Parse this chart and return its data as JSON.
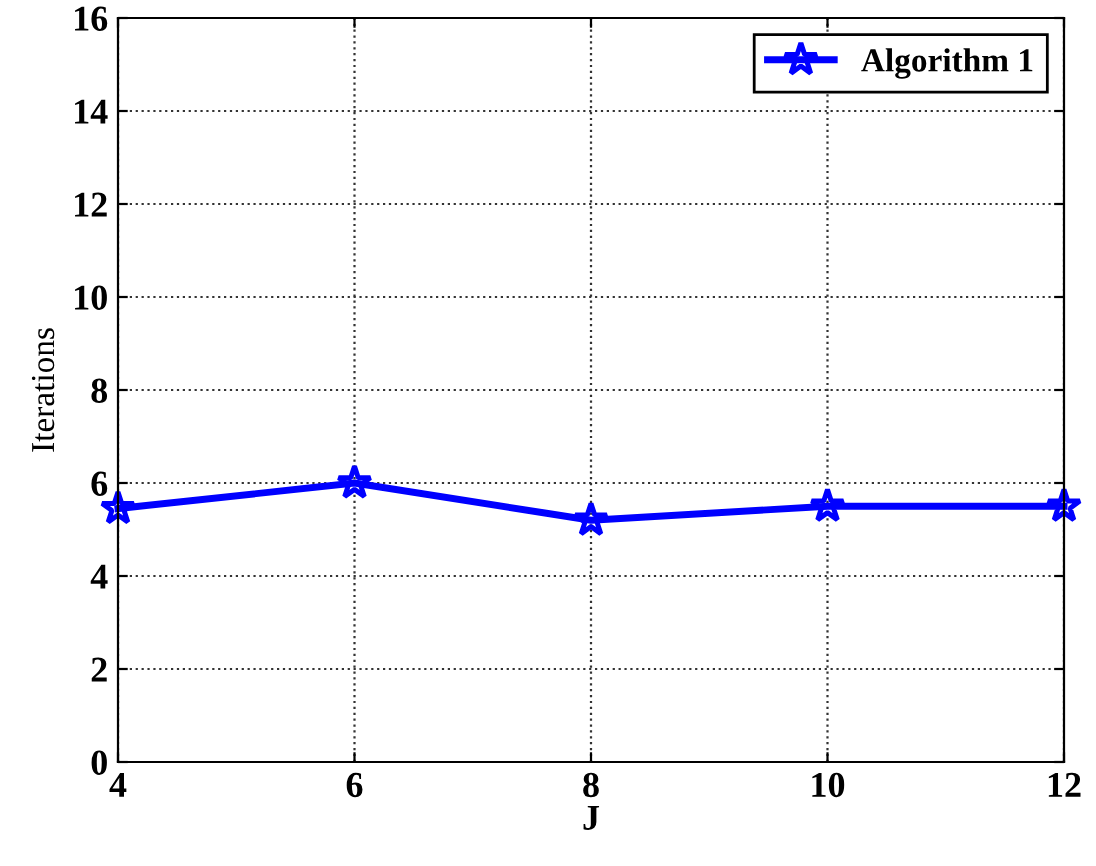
{
  "chart_data": {
    "type": "line",
    "xlabel": "J",
    "ylabel": "Iterations",
    "x": [
      4,
      6,
      8,
      10,
      12
    ],
    "series": [
      {
        "name": "Algorithm 1",
        "color": "#0000ff",
        "values": [
          5.45,
          6.0,
          5.2,
          5.5,
          5.5
        ]
      }
    ],
    "xlim": [
      4,
      12
    ],
    "xticks": [
      4,
      6,
      8,
      10,
      12
    ],
    "ylim": [
      0,
      16
    ],
    "yticks": [
      0,
      2,
      4,
      6,
      8,
      10,
      12,
      14,
      16
    ],
    "grid": true,
    "legend": "top right",
    "marker": "star",
    "line_style": "solid"
  }
}
